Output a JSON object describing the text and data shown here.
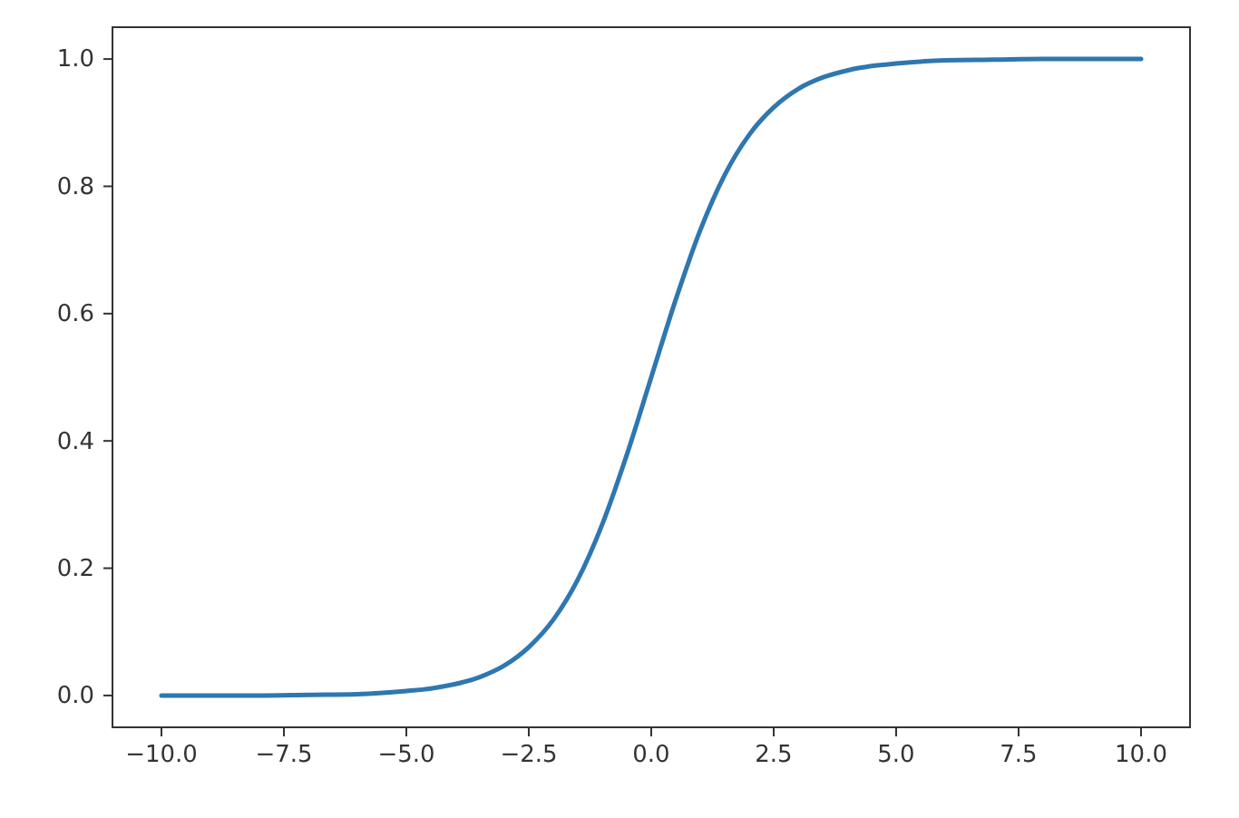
{
  "chart_data": {
    "type": "line",
    "x": [
      -10,
      -9,
      -8,
      -7,
      -6,
      -5,
      -4.5,
      -4,
      -3.5,
      -3,
      -2.5,
      -2,
      -1.5,
      -1,
      -0.5,
      0,
      0.5,
      1,
      1.5,
      2,
      2.5,
      3,
      3.5,
      4,
      4.5,
      5,
      6,
      7,
      8,
      9,
      10
    ],
    "series": [
      {
        "color": "#2e77b0",
        "values": [
          0.0,
          0.0,
          0.0,
          0.001,
          0.002,
          0.007,
          0.011,
          0.018,
          0.029,
          0.047,
          0.076,
          0.119,
          0.182,
          0.269,
          0.378,
          0.5,
          0.622,
          0.731,
          0.818,
          0.881,
          0.924,
          0.953,
          0.971,
          0.982,
          0.989,
          0.993,
          0.998,
          0.999,
          1.0,
          1.0,
          1.0
        ]
      }
    ],
    "xlim": [
      -11,
      11
    ],
    "ylim": [
      -0.05,
      1.05
    ],
    "xticks": [
      {
        "value": -10,
        "label": "−10.0"
      },
      {
        "value": -7.5,
        "label": "−7.5"
      },
      {
        "value": -5,
        "label": "−5.0"
      },
      {
        "value": -2.5,
        "label": "−2.5"
      },
      {
        "value": 0,
        "label": "0.0"
      },
      {
        "value": 2.5,
        "label": "2.5"
      },
      {
        "value": 5,
        "label": "5.0"
      },
      {
        "value": 7.5,
        "label": "7.5"
      },
      {
        "value": 10,
        "label": "10.0"
      }
    ],
    "yticks": [
      {
        "value": 0,
        "label": "0.0"
      },
      {
        "value": 0.2,
        "label": "0.2"
      },
      {
        "value": 0.4,
        "label": "0.4"
      },
      {
        "value": 0.6,
        "label": "0.6"
      },
      {
        "value": 0.8,
        "label": "0.8"
      },
      {
        "value": 1,
        "label": "1.0"
      }
    ],
    "grid": false,
    "marker": "none",
    "line_style": "solid"
  }
}
